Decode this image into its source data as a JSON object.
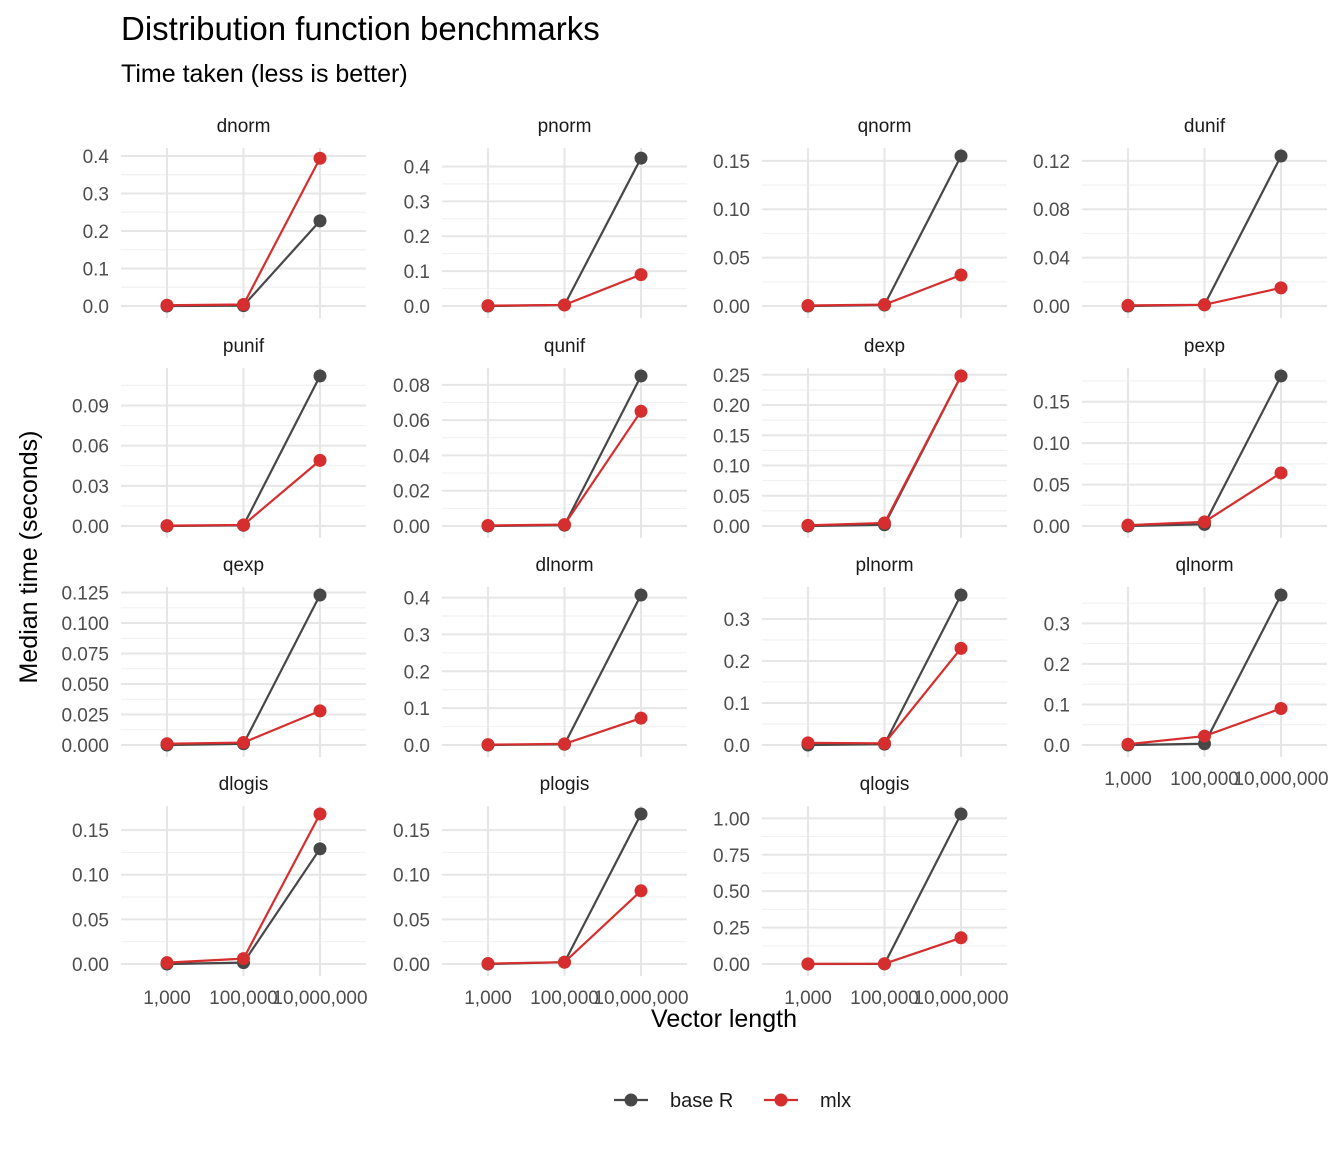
{
  "chart_data": {
    "type": "line",
    "title": "Distribution function benchmarks",
    "subtitle": "Time taken (less is better)",
    "xlabel": "Vector length",
    "ylabel": "Median time (seconds)",
    "x_scale": "log10",
    "x_ticks": [
      1000,
      100000,
      10000000
    ],
    "x_tick_labels": [
      "1,000",
      "100,000",
      "10,000,000"
    ],
    "legend": {
      "position": "bottom",
      "entries": [
        {
          "name": "base R",
          "color": "#474747"
        },
        {
          "name": "mlx",
          "color": "#d62e2e"
        }
      ]
    },
    "x": [
      1000,
      100000,
      10000000
    ],
    "panels": [
      {
        "title": "dnorm",
        "ylim": [
          0,
          0.4
        ],
        "yticks": [
          0.0,
          0.1,
          0.2,
          0.3,
          0.4
        ],
        "ytick_labels": [
          "0.0",
          "0.1",
          "0.2",
          "0.3",
          "0.4"
        ],
        "series": [
          {
            "name": "base R",
            "values": [
              0.0,
              0.001,
              0.227
            ]
          },
          {
            "name": "mlx",
            "values": [
              0.002,
              0.004,
              0.394
            ]
          }
        ]
      },
      {
        "title": "pnorm",
        "ylim": [
          0,
          0.43
        ],
        "yticks": [
          0.0,
          0.1,
          0.2,
          0.3,
          0.4
        ],
        "ytick_labels": [
          "0.0",
          "0.1",
          "0.2",
          "0.3",
          "0.4"
        ],
        "series": [
          {
            "name": "base R",
            "values": [
              0.0,
              0.003,
              0.424
            ]
          },
          {
            "name": "mlx",
            "values": [
              0.001,
              0.003,
              0.09
            ]
          }
        ]
      },
      {
        "title": "qnorm",
        "ylim": [
          0,
          0.155
        ],
        "yticks": [
          0.0,
          0.05,
          0.1,
          0.15
        ],
        "ytick_labels": [
          "0.00",
          "0.05",
          "0.10",
          "0.15"
        ],
        "series": [
          {
            "name": "base R",
            "values": [
              0.0,
              0.001,
              0.155
            ]
          },
          {
            "name": "mlx",
            "values": [
              0.0005,
              0.0015,
              0.032
            ]
          }
        ]
      },
      {
        "title": "dunif",
        "ylim": [
          0,
          0.124
        ],
        "yticks": [
          0.0,
          0.04,
          0.08,
          0.12
        ],
        "ytick_labels": [
          "0.00",
          "0.04",
          "0.08",
          "0.12"
        ],
        "series": [
          {
            "name": "base R",
            "values": [
              0.0,
              0.001,
              0.124
            ]
          },
          {
            "name": "mlx",
            "values": [
              0.0005,
              0.001,
              0.015
            ]
          }
        ]
      },
      {
        "title": "punif",
        "ylim": [
          0,
          0.112
        ],
        "yticks": [
          0.0,
          0.03,
          0.06,
          0.09
        ],
        "ytick_labels": [
          "0.00",
          "0.03",
          "0.06",
          "0.09"
        ],
        "series": [
          {
            "name": "base R",
            "values": [
              0.0,
              0.0005,
              0.112
            ]
          },
          {
            "name": "mlx",
            "values": [
              0.0003,
              0.0008,
              0.049
            ]
          }
        ]
      },
      {
        "title": "qunif",
        "ylim": [
          0,
          0.085
        ],
        "yticks": [
          0.0,
          0.02,
          0.04,
          0.06,
          0.08
        ],
        "ytick_labels": [
          "0.00",
          "0.02",
          "0.04",
          "0.06",
          "0.08"
        ],
        "series": [
          {
            "name": "base R",
            "values": [
              0.0,
              0.0005,
              0.085
            ]
          },
          {
            "name": "mlx",
            "values": [
              0.0003,
              0.0008,
              0.065
            ]
          }
        ]
      },
      {
        "title": "dexp",
        "ylim": [
          0,
          0.248
        ],
        "yticks": [
          0.0,
          0.05,
          0.1,
          0.15,
          0.2,
          0.25
        ],
        "ytick_labels": [
          "0.00",
          "0.05",
          "0.10",
          "0.15",
          "0.20",
          "0.25"
        ],
        "series": [
          {
            "name": "base R",
            "values": [
              0.0,
              0.002,
              0.248
            ]
          },
          {
            "name": "mlx",
            "values": [
              0.001,
              0.005,
              0.248
            ]
          }
        ]
      },
      {
        "title": "pexp",
        "ylim": [
          0,
          0.181
        ],
        "yticks": [
          0.0,
          0.05,
          0.1,
          0.15
        ],
        "ytick_labels": [
          "0.00",
          "0.05",
          "0.10",
          "0.15"
        ],
        "series": [
          {
            "name": "base R",
            "values": [
              0.0,
              0.002,
              0.181
            ]
          },
          {
            "name": "mlx",
            "values": [
              0.001,
              0.005,
              0.064
            ]
          }
        ]
      },
      {
        "title": "qexp",
        "ylim": [
          0,
          0.123
        ],
        "yticks": [
          0.0,
          0.025,
          0.05,
          0.075,
          0.1,
          0.125
        ],
        "ytick_labels": [
          "0.000",
          "0.025",
          "0.050",
          "0.075",
          "0.100",
          "0.125"
        ],
        "series": [
          {
            "name": "base R",
            "values": [
              0.0,
              0.001,
              0.123
            ]
          },
          {
            "name": "mlx",
            "values": [
              0.001,
              0.002,
              0.028
            ]
          }
        ]
      },
      {
        "title": "dlnorm",
        "ylim": [
          0,
          0.407
        ],
        "yticks": [
          0.0,
          0.1,
          0.2,
          0.3,
          0.4
        ],
        "ytick_labels": [
          "0.0",
          "0.1",
          "0.2",
          "0.3",
          "0.4"
        ],
        "series": [
          {
            "name": "base R",
            "values": [
              0.0,
              0.002,
              0.407
            ]
          },
          {
            "name": "mlx",
            "values": [
              0.001,
              0.003,
              0.073
            ]
          }
        ]
      },
      {
        "title": "plnorm",
        "ylim": [
          0,
          0.357
        ],
        "yticks": [
          0.0,
          0.1,
          0.2,
          0.3
        ],
        "ytick_labels": [
          "0.0",
          "0.1",
          "0.2",
          "0.3"
        ],
        "series": [
          {
            "name": "base R",
            "values": [
              0.0,
              0.002,
              0.357
            ]
          },
          {
            "name": "mlx",
            "values": [
              0.005,
              0.004,
              0.23
            ]
          }
        ]
      },
      {
        "title": "qlnorm",
        "ylim": [
          0,
          0.37
        ],
        "yticks": [
          0.0,
          0.1,
          0.2,
          0.3
        ],
        "ytick_labels": [
          "0.0",
          "0.1",
          "0.2",
          "0.3"
        ],
        "series": [
          {
            "name": "base R",
            "values": [
              0.0,
              0.003,
              0.37
            ]
          },
          {
            "name": "mlx",
            "values": [
              0.002,
              0.022,
              0.09
            ]
          }
        ]
      },
      {
        "title": "dlogis",
        "ylim": [
          0,
          0.168
        ],
        "yticks": [
          0.0,
          0.05,
          0.1,
          0.15
        ],
        "ytick_labels": [
          "0.00",
          "0.05",
          "0.10",
          "0.15"
        ],
        "series": [
          {
            "name": "base R",
            "values": [
              0.0,
              0.0015,
              0.129
            ]
          },
          {
            "name": "mlx",
            "values": [
              0.0015,
              0.006,
              0.168
            ]
          }
        ]
      },
      {
        "title": "plogis",
        "ylim": [
          0,
          0.168
        ],
        "yticks": [
          0.0,
          0.05,
          0.1,
          0.15
        ],
        "ytick_labels": [
          "0.00",
          "0.05",
          "0.10",
          "0.15"
        ],
        "series": [
          {
            "name": "base R",
            "values": [
              0.0,
              0.002,
              0.168
            ]
          },
          {
            "name": "mlx",
            "values": [
              0.0005,
              0.002,
              0.082
            ]
          }
        ]
      },
      {
        "title": "qlogis",
        "ylim": [
          0,
          1.03
        ],
        "yticks": [
          0.0,
          0.25,
          0.5,
          0.75,
          1.0
        ],
        "ytick_labels": [
          "0.00",
          "0.25",
          "0.50",
          "0.75",
          "1.00"
        ],
        "series": [
          {
            "name": "base R",
            "values": [
              0.0,
              0.001,
              1.03
            ]
          },
          {
            "name": "mlx",
            "values": [
              0.001,
              0.002,
              0.18
            ]
          }
        ]
      }
    ]
  }
}
